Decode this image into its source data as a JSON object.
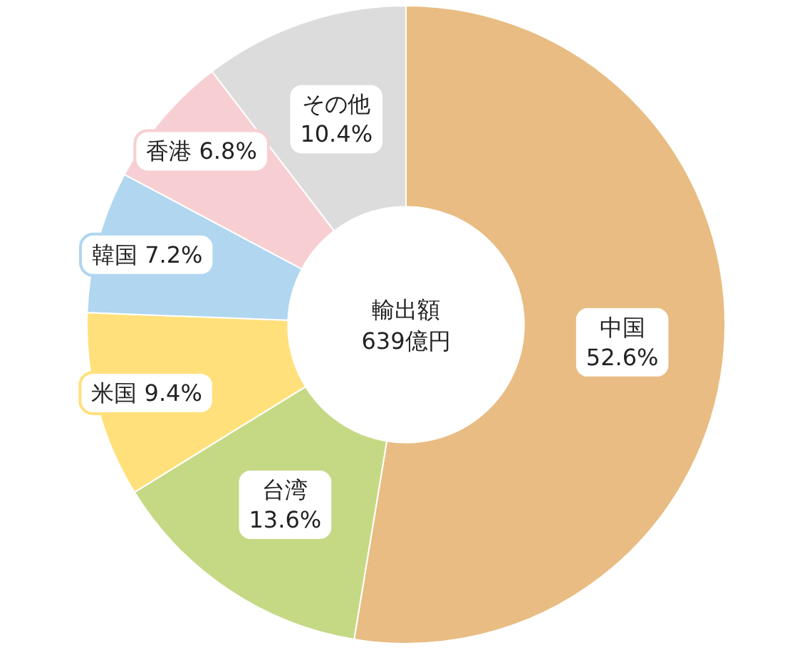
{
  "chart_data": {
    "type": "donut",
    "categories": [
      "中国",
      "台湾",
      "米国",
      "韓国",
      "香港",
      "その他"
    ],
    "values": [
      52.6,
      13.6,
      9.4,
      7.2,
      6.8,
      10.4
    ],
    "value_labels": [
      "52.6%",
      "13.6%",
      "9.4%",
      "7.2%",
      "6.8%",
      "10.4%"
    ],
    "colors": [
      "#e8bc82",
      "#c5d985",
      "#ffe07a",
      "#b0d6f0",
      "#f7cfd2",
      "#dcdcdc"
    ],
    "annotations": [
      "輸出額",
      "639億円"
    ]
  }
}
